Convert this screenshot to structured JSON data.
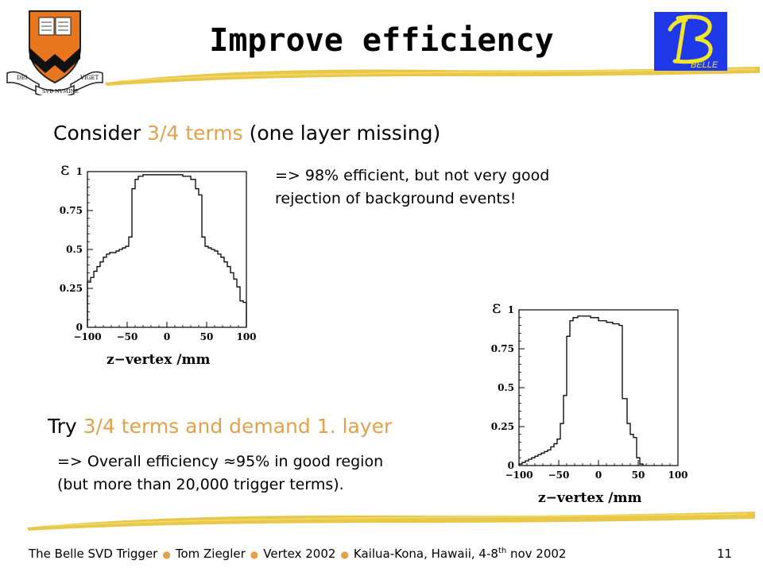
{
  "header": {
    "title": "Improve efficiency"
  },
  "section1": {
    "heading_pre": "Consider ",
    "heading_accent": "3/4 terms",
    "heading_post": " (one layer missing)",
    "note_line1": "=> 98% efficient, but not very good",
    "note_line2": "rejection of background events!"
  },
  "section2": {
    "heading_pre": "Try ",
    "heading_accent": "3/4 terms and demand 1. layer",
    "note_line1": "=> Overall efficiency ≈95% in good region",
    "note_line2": "(but more than 20,000 trigger terms)."
  },
  "footer": {
    "part1": "The Belle SVD Trigger",
    "part2": "Tom Ziegler",
    "part3": "Vertex 2002",
    "part4_pre": "Kailua-Kona, Hawaii, 4-8",
    "part4_sup": "th",
    "part4_post": " nov 2002",
    "page": "11"
  },
  "logos": {
    "left_banner_words": [
      "DEI",
      "SVB NVMINE",
      "VIGET"
    ],
    "right_logo_text": "BELLE"
  },
  "colors": {
    "accent": "#e2a14a",
    "stroke": "#e8c84a",
    "belle_bg": "#1f38e8",
    "belle_fg": "#f2e52a",
    "shield": "#e8761e"
  },
  "chart_data": [
    {
      "type": "histogram",
      "ylabel_symbol": "ε",
      "xlabel": "z−vertex /mm",
      "xlim": [
        -100,
        100
      ],
      "ylim": [
        0,
        1
      ],
      "xticks": [
        "−100",
        "−50",
        "0",
        "50",
        "100"
      ],
      "yticks": [
        "0",
        "0.25",
        "0.5",
        "0.75",
        "1"
      ],
      "bins": [
        {
          "x0": -100,
          "x1": -96,
          "y": 0.29
        },
        {
          "x0": -96,
          "x1": -92,
          "y": 0.32
        },
        {
          "x0": -92,
          "x1": -88,
          "y": 0.36
        },
        {
          "x0": -88,
          "x1": -84,
          "y": 0.39
        },
        {
          "x0": -84,
          "x1": -80,
          "y": 0.42
        },
        {
          "x0": -80,
          "x1": -76,
          "y": 0.45
        },
        {
          "x0": -76,
          "x1": -72,
          "y": 0.47
        },
        {
          "x0": -72,
          "x1": -68,
          "y": 0.48
        },
        {
          "x0": -68,
          "x1": -64,
          "y": 0.48
        },
        {
          "x0": -64,
          "x1": -60,
          "y": 0.49
        },
        {
          "x0": -60,
          "x1": -56,
          "y": 0.5
        },
        {
          "x0": -56,
          "x1": -52,
          "y": 0.51
        },
        {
          "x0": -52,
          "x1": -48,
          "y": 0.52
        },
        {
          "x0": -48,
          "x1": -44,
          "y": 0.58
        },
        {
          "x0": -44,
          "x1": -40,
          "y": 0.89
        },
        {
          "x0": -40,
          "x1": -36,
          "y": 0.95
        },
        {
          "x0": -36,
          "x1": -30,
          "y": 0.97
        },
        {
          "x0": -30,
          "x1": -10,
          "y": 0.98
        },
        {
          "x0": -10,
          "x1": 20,
          "y": 0.98
        },
        {
          "x0": 20,
          "x1": 30,
          "y": 0.97
        },
        {
          "x0": 30,
          "x1": 36,
          "y": 0.95
        },
        {
          "x0": 36,
          "x1": 40,
          "y": 0.89
        },
        {
          "x0": 40,
          "x1": 44,
          "y": 0.85
        },
        {
          "x0": 44,
          "x1": 48,
          "y": 0.58
        },
        {
          "x0": 48,
          "x1": 52,
          "y": 0.52
        },
        {
          "x0": 52,
          "x1": 56,
          "y": 0.51
        },
        {
          "x0": 56,
          "x1": 60,
          "y": 0.5
        },
        {
          "x0": 60,
          "x1": 64,
          "y": 0.49
        },
        {
          "x0": 64,
          "x1": 68,
          "y": 0.47
        },
        {
          "x0": 68,
          "x1": 72,
          "y": 0.45
        },
        {
          "x0": 72,
          "x1": 76,
          "y": 0.42
        },
        {
          "x0": 76,
          "x1": 80,
          "y": 0.39
        },
        {
          "x0": 80,
          "x1": 84,
          "y": 0.35
        },
        {
          "x0": 84,
          "x1": 88,
          "y": 0.31
        },
        {
          "x0": 88,
          "x1": 92,
          "y": 0.26
        },
        {
          "x0": 92,
          "x1": 96,
          "y": 0.17
        },
        {
          "x0": 96,
          "x1": 100,
          "y": 0.16
        }
      ]
    },
    {
      "type": "histogram",
      "ylabel_symbol": "ε",
      "xlabel": "z−vertex /mm",
      "xlim": [
        -100,
        100
      ],
      "ylim": [
        0,
        1
      ],
      "xticks": [
        "−100",
        "−50",
        "0",
        "50",
        "100"
      ],
      "yticks": [
        "0",
        "0.25",
        "0.5",
        "0.75",
        "1"
      ],
      "bins": [
        {
          "x0": -100,
          "x1": -96,
          "y": 0.01
        },
        {
          "x0": -96,
          "x1": -92,
          "y": 0.02
        },
        {
          "x0": -92,
          "x1": -88,
          "y": 0.03
        },
        {
          "x0": -88,
          "x1": -84,
          "y": 0.04
        },
        {
          "x0": -84,
          "x1": -80,
          "y": 0.05
        },
        {
          "x0": -80,
          "x1": -76,
          "y": 0.06
        },
        {
          "x0": -76,
          "x1": -72,
          "y": 0.07
        },
        {
          "x0": -72,
          "x1": -68,
          "y": 0.08
        },
        {
          "x0": -68,
          "x1": -64,
          "y": 0.09
        },
        {
          "x0": -64,
          "x1": -60,
          "y": 0.1
        },
        {
          "x0": -60,
          "x1": -56,
          "y": 0.12
        },
        {
          "x0": -56,
          "x1": -52,
          "y": 0.14
        },
        {
          "x0": -52,
          "x1": -48,
          "y": 0.17
        },
        {
          "x0": -48,
          "x1": -44,
          "y": 0.27
        },
        {
          "x0": -44,
          "x1": -40,
          "y": 0.45
        },
        {
          "x0": -40,
          "x1": -36,
          "y": 0.83
        },
        {
          "x0": -36,
          "x1": -32,
          "y": 0.93
        },
        {
          "x0": -32,
          "x1": -26,
          "y": 0.95
        },
        {
          "x0": -26,
          "x1": -10,
          "y": 0.96
        },
        {
          "x0": -10,
          "x1": 0,
          "y": 0.95
        },
        {
          "x0": 0,
          "x1": 10,
          "y": 0.93
        },
        {
          "x0": 10,
          "x1": 18,
          "y": 0.92
        },
        {
          "x0": 18,
          "x1": 26,
          "y": 0.91
        },
        {
          "x0": 26,
          "x1": 30,
          "y": 0.9
        },
        {
          "x0": 30,
          "x1": 36,
          "y": 0.43
        },
        {
          "x0": 36,
          "x1": 40,
          "y": 0.27
        },
        {
          "x0": 40,
          "x1": 44,
          "y": 0.2
        },
        {
          "x0": 44,
          "x1": 48,
          "y": 0.18
        },
        {
          "x0": 48,
          "x1": 52,
          "y": 0.05
        },
        {
          "x0": 52,
          "x1": 56,
          "y": 0.01
        }
      ]
    }
  ]
}
